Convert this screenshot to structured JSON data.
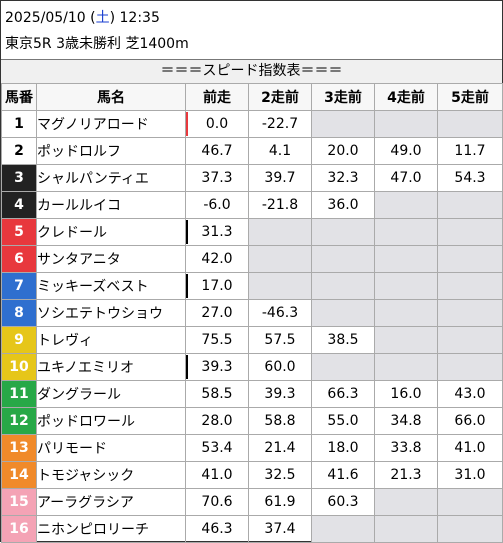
{
  "header": {
    "date_prefix": "2025/05/10 (",
    "weekday": "土",
    "date_suffix": ") 12:35",
    "race_line": "東京5R 3歳未勝利 芝1400m"
  },
  "banner": "＝＝＝スピード指数表＝＝＝",
  "columns": [
    "馬番",
    "馬名",
    "前走",
    "2走前",
    "3走前",
    "4走前",
    "5走前"
  ],
  "gate_colors": {
    "1": "#ffffff",
    "2": "#ffffff",
    "3": "#222222",
    "4": "#222222",
    "5": "#e8383d",
    "6": "#e8383d",
    "7": "#2f6fcf",
    "8": "#2f6fcf",
    "9": "#e6c619",
    "10": "#e6c619",
    "11": "#27a847",
    "12": "#27a847",
    "13": "#f08a2a",
    "14": "#f08a2a",
    "15": "#f4a3b5",
    "16": "#f4a3b5"
  },
  "gate_text_colors": {
    "1": "#000000",
    "2": "#000000",
    "3": "#ffffff",
    "4": "#ffffff",
    "5": "#ffffff",
    "6": "#ffffff",
    "7": "#ffffff",
    "8": "#ffffff",
    "9": "#ffffff",
    "10": "#ffffff",
    "11": "#ffffff",
    "12": "#ffffff",
    "13": "#ffffff",
    "14": "#ffffff",
    "15": "#ffffff",
    "16": "#ffffff"
  },
  "rows": [
    {
      "no": "1",
      "name": "マグノリアロード",
      "flag": "#e8383d",
      "v": [
        "0.0",
        "-22.7",
        "",
        "",
        ""
      ]
    },
    {
      "no": "2",
      "name": "ポッドロルフ",
      "flag": "",
      "v": [
        "46.7",
        "4.1",
        "20.0",
        "49.0",
        "11.7"
      ]
    },
    {
      "no": "3",
      "name": "シャルパンティエ",
      "flag": "",
      "v": [
        "37.3",
        "39.7",
        "32.3",
        "47.0",
        "54.3"
      ]
    },
    {
      "no": "4",
      "name": "カールルイコ",
      "flag": "",
      "v": [
        "-6.0",
        "-21.8",
        "36.0",
        "",
        ""
      ]
    },
    {
      "no": "5",
      "name": "クレドール",
      "flag": "#000000",
      "v": [
        "31.3",
        "",
        "",
        "",
        ""
      ]
    },
    {
      "no": "6",
      "name": "サンタアニタ",
      "flag": "",
      "v": [
        "42.0",
        "",
        "",
        "",
        ""
      ]
    },
    {
      "no": "7",
      "name": "ミッキーズベスト",
      "flag": "#000000",
      "v": [
        "17.0",
        "",
        "",
        "",
        ""
      ]
    },
    {
      "no": "8",
      "name": "ソシエテトウショウ",
      "flag": "",
      "v": [
        "27.0",
        "-46.3",
        "",
        "",
        ""
      ]
    },
    {
      "no": "9",
      "name": "トレヴィ",
      "flag": "",
      "v": [
        "75.5",
        "57.5",
        "38.5",
        "",
        ""
      ]
    },
    {
      "no": "10",
      "name": "ユキノエミリオ",
      "flag": "#000000",
      "v": [
        "39.3",
        "60.0",
        "",
        "",
        ""
      ]
    },
    {
      "no": "11",
      "name": "ダングラール",
      "flag": "",
      "v": [
        "58.5",
        "39.3",
        "66.3",
        "16.0",
        "43.0"
      ]
    },
    {
      "no": "12",
      "name": "ポッドロワール",
      "flag": "",
      "v": [
        "28.0",
        "58.8",
        "55.0",
        "34.8",
        "66.0"
      ]
    },
    {
      "no": "13",
      "name": "パリモード",
      "flag": "",
      "v": [
        "53.4",
        "21.4",
        "18.0",
        "33.8",
        "41.0"
      ]
    },
    {
      "no": "14",
      "name": "トモジャシック",
      "flag": "",
      "v": [
        "41.0",
        "32.5",
        "41.6",
        "21.3",
        "31.0"
      ]
    },
    {
      "no": "15",
      "name": "アーラグラシア",
      "flag": "",
      "v": [
        "70.6",
        "61.9",
        "60.3",
        "",
        ""
      ]
    },
    {
      "no": "16",
      "name": "ニホンピロリーチ",
      "flag": "",
      "v": [
        "46.3",
        "37.4",
        "",
        "",
        ""
      ]
    }
  ]
}
